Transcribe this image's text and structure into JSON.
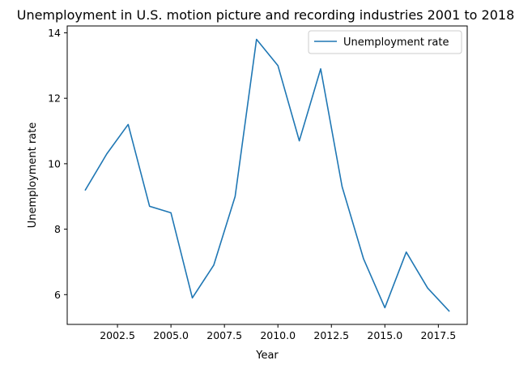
{
  "chart_data": {
    "type": "line",
    "title": "Unemployment in U.S. motion picture and recording industries 2001 to 2018",
    "xlabel": "Year",
    "ylabel": "Unemployment rate",
    "xlim": [
      2000.15,
      2018.85
    ],
    "ylim": [
      5.09,
      14.21
    ],
    "xticks": [
      2002.5,
      2005.0,
      2007.5,
      2010.0,
      2012.5,
      2015.0,
      2017.5
    ],
    "xtick_labels": [
      "2002.5",
      "2005.0",
      "2007.5",
      "2010.0",
      "2012.5",
      "2015.0",
      "2017.5"
    ],
    "yticks": [
      6,
      8,
      10,
      12,
      14
    ],
    "ytick_labels": [
      "6",
      "8",
      "10",
      "12",
      "14"
    ],
    "grid": false,
    "legend_position": "top-right",
    "series": [
      {
        "name": "Unemployment rate",
        "color": "#1f77b4",
        "x": [
          2001,
          2002,
          2003,
          2004,
          2005,
          2006,
          2007,
          2008,
          2009,
          2010,
          2011,
          2012,
          2013,
          2014,
          2015,
          2016,
          2017,
          2018
        ],
        "y": [
          9.2,
          10.3,
          11.2,
          8.7,
          8.5,
          5.9,
          6.9,
          9.0,
          13.8,
          13.0,
          10.7,
          12.9,
          9.3,
          7.1,
          5.6,
          7.3,
          6.2,
          5.5
        ]
      }
    ]
  }
}
